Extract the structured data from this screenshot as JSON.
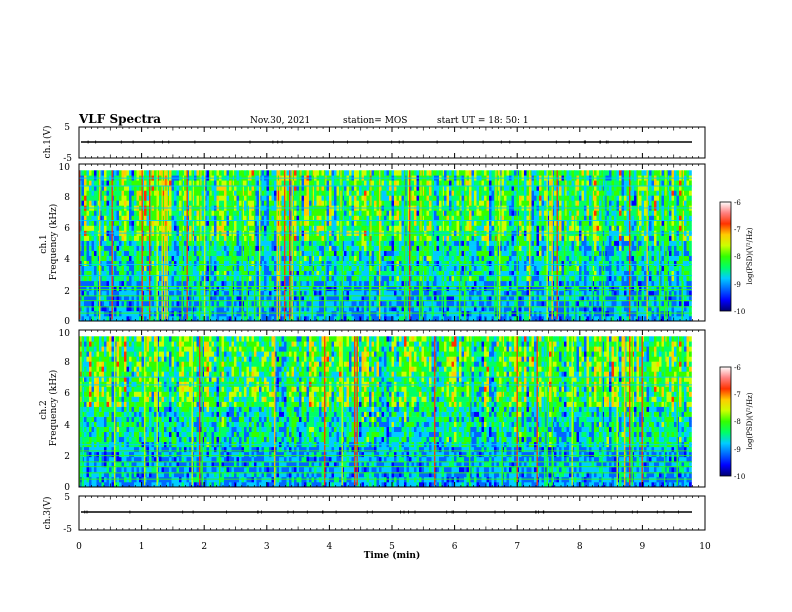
{
  "header": {
    "title": "VLF Spectra",
    "date": "Nov.30, 2021",
    "station": "station= MOS",
    "start_ut": "start  UT =   18: 50: 1"
  },
  "chart_data": {
    "type": "heatmap",
    "xlabel": "Time  (min)",
    "xlim": [
      0,
      10
    ],
    "x_ticks": [
      "0",
      "1",
      "2",
      "3",
      "4",
      "5",
      "6",
      "7",
      "8",
      "9",
      "10"
    ],
    "panels": [
      {
        "id": "ch1_wave",
        "type": "line",
        "ylabel": "ch.1(V)",
        "ylim": [
          -5,
          5
        ],
        "y_ticks": [
          "5",
          "-5"
        ],
        "baseline": -1.5
      },
      {
        "id": "ch1_spec",
        "type": "heatmap",
        "ylabel_channel": "ch.1",
        "ylabel": "Frequency (kHz)",
        "ylim": [
          0,
          10
        ],
        "y_ticks": [
          "0",
          "2",
          "4",
          "6",
          "8",
          "10"
        ],
        "colorbar": {
          "range": [
            -10,
            -6
          ],
          "ticks": [
            "-6",
            "-7",
            "-8",
            "-9",
            "-10"
          ],
          "label": "log(PSD)(V²/Hz)"
        },
        "emission_lines_khz": [
          0.5,
          0.9,
          1.3,
          1.6,
          2.0,
          2.2,
          2.9,
          3.6,
          5.6,
          6.4,
          7.2,
          8.6,
          9.1
        ]
      },
      {
        "id": "ch2_spec",
        "type": "heatmap",
        "ylabel_channel": "ch.2",
        "ylabel": "Frequency (kHz)",
        "ylim": [
          0,
          10
        ],
        "y_ticks": [
          "0",
          "2",
          "4",
          "6",
          "8",
          "10"
        ],
        "colorbar": {
          "range": [
            -10,
            -6
          ],
          "ticks": [
            "-6",
            "-7",
            "-8",
            "-9",
            "-10"
          ],
          "label": "log(PSD)(V²/Hz)"
        },
        "emission_lines_khz": [
          0.5,
          0.9,
          1.3,
          1.6,
          2.0,
          2.3,
          2.7,
          6.5,
          7.0
        ]
      },
      {
        "id": "ch3_wave",
        "type": "line",
        "ylabel": "ch.3(V)",
        "ylim": [
          -5,
          5
        ],
        "y_ticks": [
          "5",
          "-5"
        ],
        "baseline": -1.5
      }
    ]
  },
  "colors": {
    "colormap": [
      "#000070",
      "#0000ff",
      "#0066ff",
      "#00ccff",
      "#00ff66",
      "#33ff00",
      "#ccff00",
      "#ffcc00",
      "#ff3300",
      "#ff8080",
      "#ffffff"
    ]
  }
}
